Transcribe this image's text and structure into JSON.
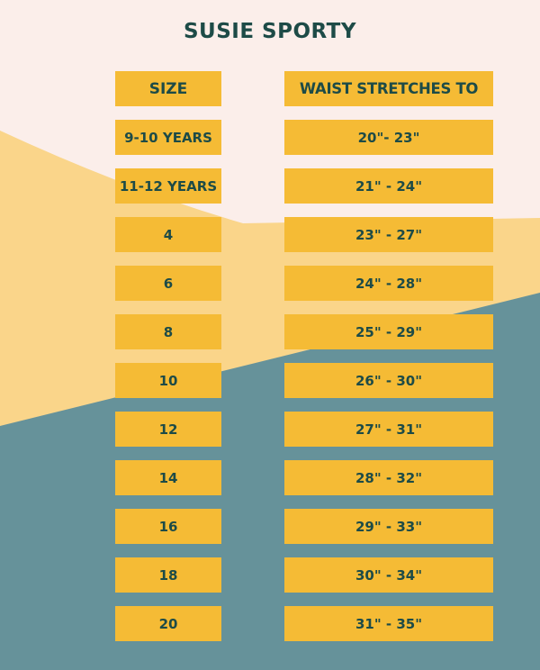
{
  "title": "SUSIE SPORTY",
  "headers": {
    "size": "SIZE",
    "waist": "WAIST STRETCHES TO"
  },
  "rows": [
    {
      "size": "9-10 YEARS",
      "waist": "20\"- 23\""
    },
    {
      "size": "11-12 YEARS",
      "waist": "21\" - 24\""
    },
    {
      "size": "4",
      "waist": "23\" - 27\""
    },
    {
      "size": "6",
      "waist": "24\" - 28\""
    },
    {
      "size": "8",
      "waist": "25\" - 29\""
    },
    {
      "size": "10",
      "waist": "26\" - 30\""
    },
    {
      "size": "12",
      "waist": "27\" - 31\""
    },
    {
      "size": "14",
      "waist": "28\" - 32\""
    },
    {
      "size": "16",
      "waist": "29\" - 33\""
    },
    {
      "size": "18",
      "waist": "30\" - 34\""
    },
    {
      "size": "20",
      "waist": "31\" - 35\""
    }
  ],
  "colors": {
    "background": "#fbeeea",
    "light_yellow": "#fad58a",
    "teal": "#66929a",
    "box": "#f5bb35",
    "text": "#1d4b47"
  }
}
